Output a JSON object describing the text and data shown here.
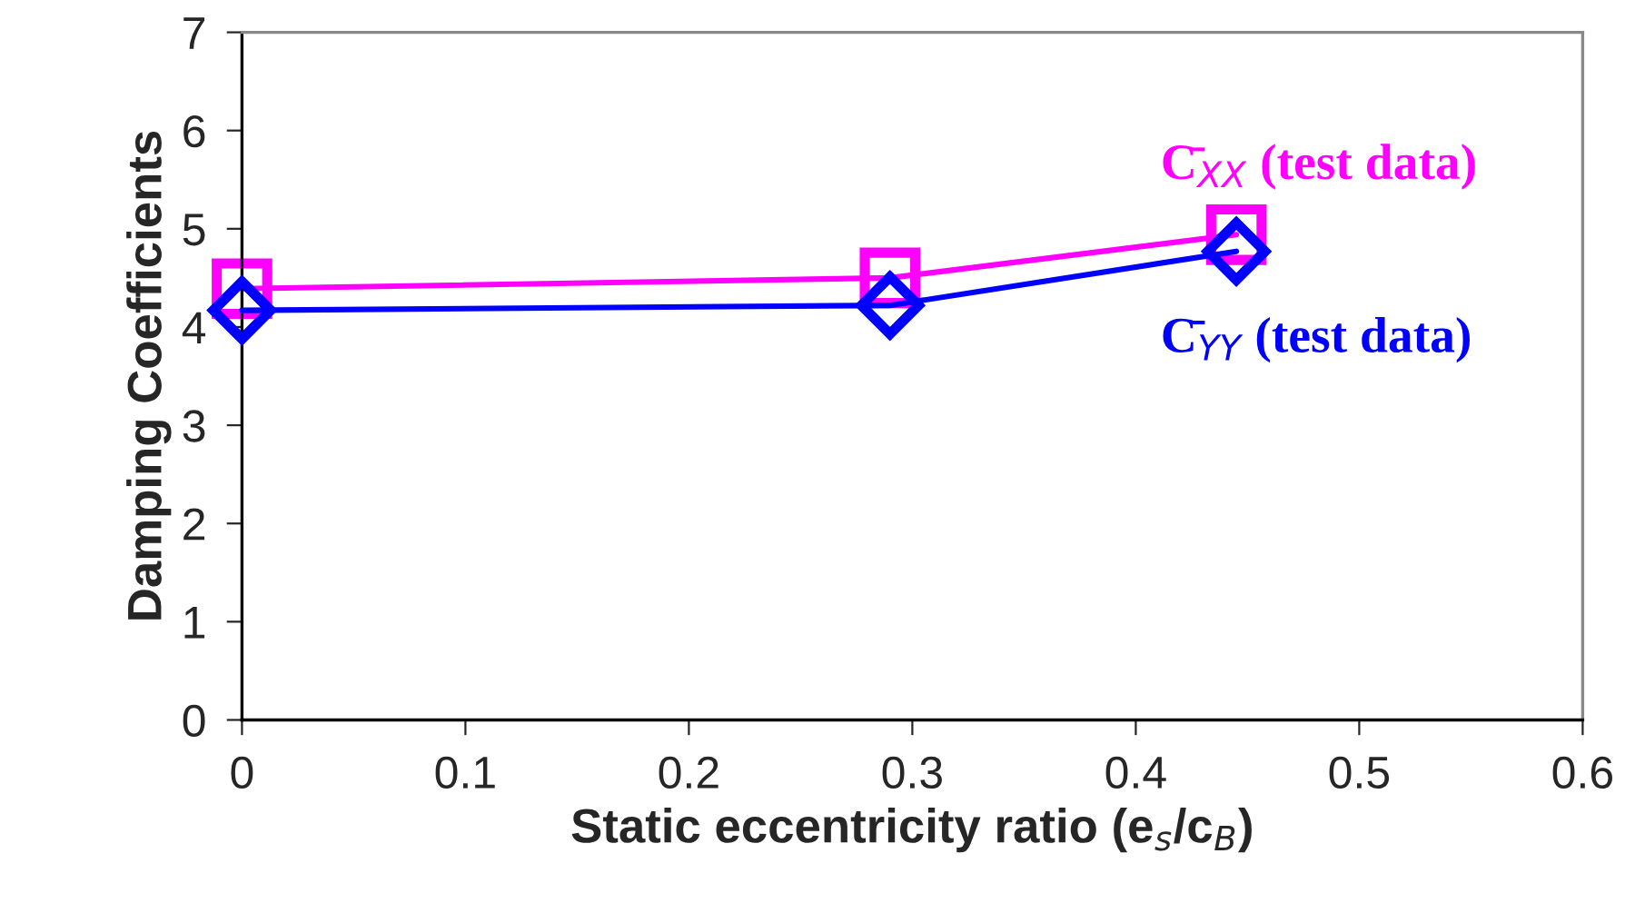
{
  "chart_data": {
    "type": "line",
    "xlabel": "Static eccentricity ratio (e$_{s}$/c$_{B}$)",
    "ylabel": "Damping Coefficients",
    "xlim": [
      0,
      0.6
    ],
    "xticks": [
      0,
      0.1,
      0.2,
      0.3,
      0.4,
      0.5,
      0.6
    ],
    "ylim": [
      0,
      7
    ],
    "yticks": [
      0,
      1,
      2,
      3,
      4,
      5,
      6,
      7
    ],
    "grid": false,
    "legend": false,
    "series": [
      {
        "name": "C̄$_{XX}$ (test data)",
        "color": "#ff00ff",
        "marker": "square",
        "x": [
          0,
          0.29,
          0.445
        ],
        "values": [
          4.39,
          4.5,
          4.94
        ]
      },
      {
        "name": "C̄$_{YY}$ (test data)",
        "color": "#0000ff",
        "marker": "diamond",
        "x": [
          0,
          0.29,
          0.445
        ],
        "values": [
          4.17,
          4.22,
          4.77
        ]
      }
    ]
  }
}
